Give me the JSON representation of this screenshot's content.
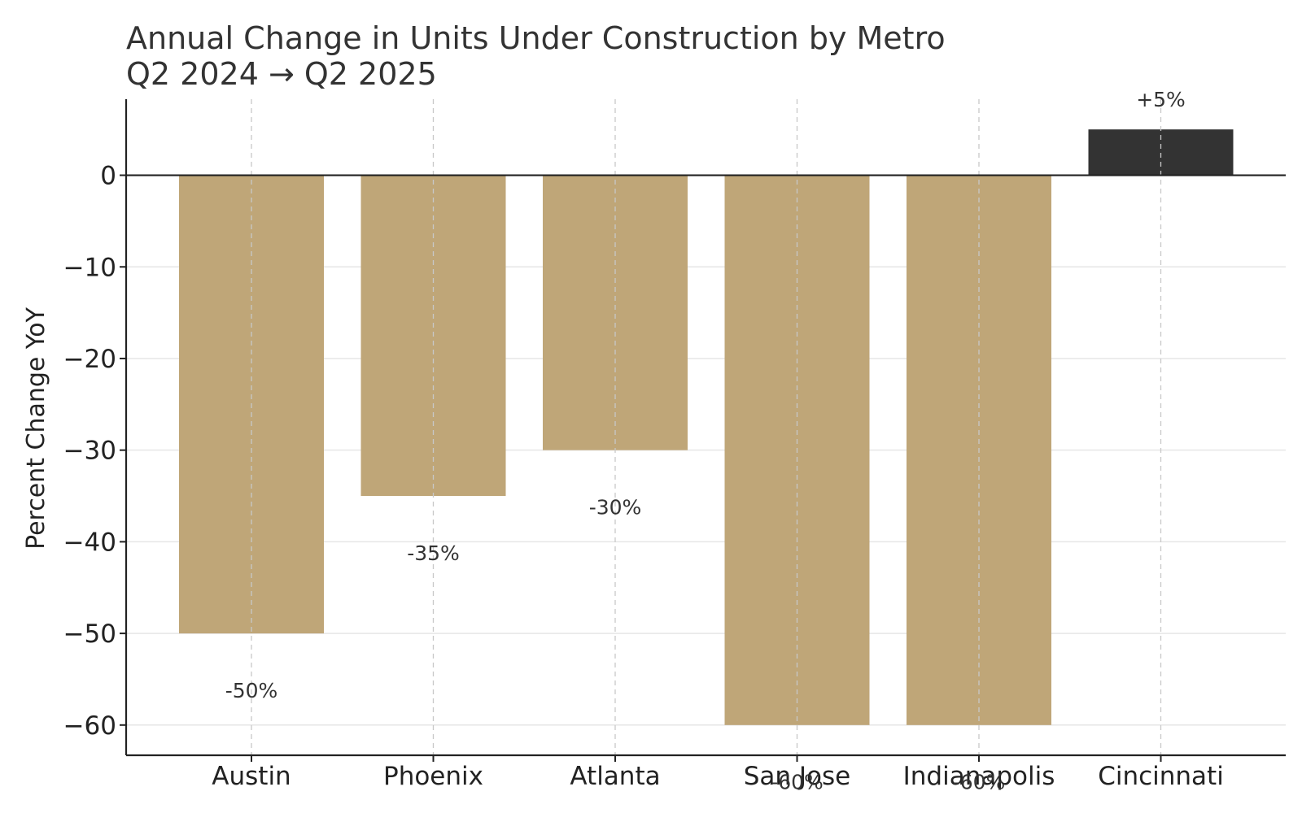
{
  "chart_data": {
    "type": "bar",
    "title": "Annual Change in Units Under Construction by Metro",
    "subtitle": "Q2 2024 → Q2 2025",
    "xlabel": "",
    "ylabel": "Percent Change YoY",
    "categories": [
      "Austin",
      "Phoenix",
      "Atlanta",
      "San Jose",
      "Indianapolis",
      "Cincinnati"
    ],
    "values": [
      -50,
      -35,
      -30,
      -60,
      -60,
      5
    ],
    "data_labels": [
      "-50%",
      "-35%",
      "-30%",
      "-60%",
      "-60%",
      "+5%"
    ],
    "ylim": [
      -63.3,
      8.3
    ],
    "yticks": [
      0,
      -10,
      -20,
      -30,
      -40,
      -50,
      -60
    ],
    "ytick_labels": [
      "0",
      "−10",
      "−20",
      "−30",
      "−40",
      "−50",
      "−60"
    ],
    "grid": true,
    "colors": {
      "negative": "#bfa678",
      "positive": "#333333",
      "zero_line": "#222222",
      "grid_horizontal": "#e6e6e6",
      "grid_vertical": "#c8c8c8"
    }
  }
}
